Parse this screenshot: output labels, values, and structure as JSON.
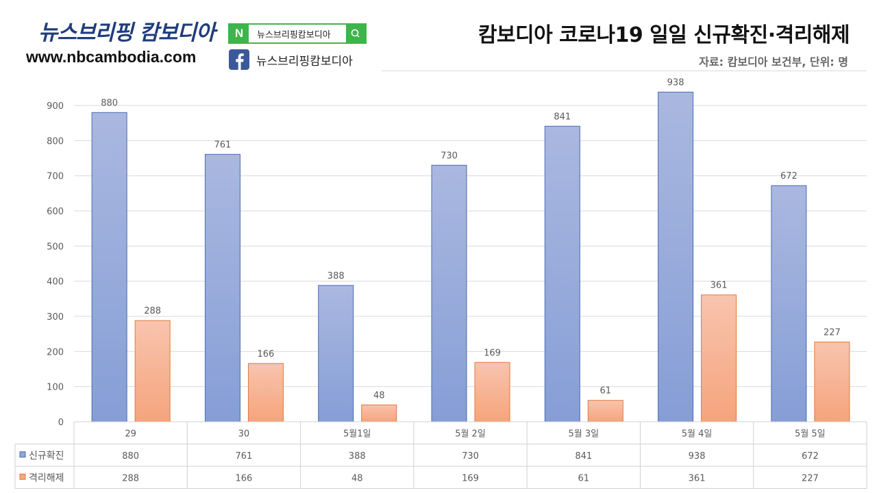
{
  "brand": {
    "title": "뉴스브리핑 캄보디아",
    "url": "www.nbcambodia.com",
    "naver_letter": "N",
    "naver_label": "뉴스브리핑캄보디아",
    "facebook_label": "뉴스브리핑캄보디아",
    "naver_color": "#3cb54a",
    "facebook_color": "#3b5998"
  },
  "header": {
    "title": "캄보디아 코로나19 일일 신규확진·격리해제",
    "subtitle": "자료: 캄보디아 보건부, 단위: 명"
  },
  "chart_data": {
    "type": "bar",
    "categories": [
      "29",
      "30",
      "5월1일",
      "5월 2일",
      "5월 3일",
      "5월 4일",
      "5월 5일"
    ],
    "series": [
      {
        "name": "신규확진",
        "values": [
          880,
          761,
          388,
          730,
          841,
          938,
          672
        ],
        "color": "#8fa4d9"
      },
      {
        "name": "격리해제",
        "values": [
          288,
          166,
          48,
          169,
          61,
          361,
          227
        ],
        "color": "#f6a983"
      }
    ],
    "y_ticks": [
      0,
      100,
      200,
      300,
      400,
      500,
      600,
      700,
      800,
      900
    ],
    "ylim": [
      0,
      1000
    ],
    "grid": true,
    "legend": "data-table",
    "data_labels": true
  }
}
